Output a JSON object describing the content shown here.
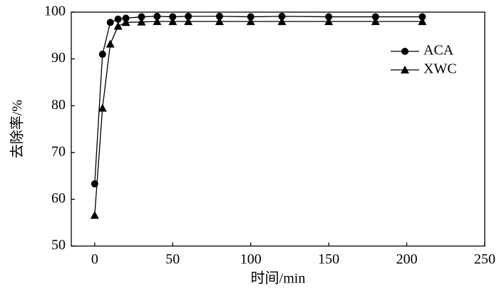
{
  "chart_data": {
    "type": "line",
    "x_label": "时间/min",
    "y_label": "去除率/%",
    "x": [
      0,
      5,
      10,
      15,
      20,
      30,
      40,
      50,
      60,
      80,
      100,
      120,
      150,
      180,
      210
    ],
    "series": [
      {
        "name": "ACA",
        "color": "#000000",
        "marker": "circle",
        "values": [
          63.3,
          91,
          97.8,
          98.5,
          98.7,
          99,
          99.1,
          99,
          99.1,
          99.1,
          99,
          99.1,
          99,
          99,
          99
        ]
      },
      {
        "name": "XWC",
        "color": "#000000",
        "marker": "triangle",
        "values": [
          56.6,
          79.5,
          93.2,
          97,
          97.8,
          97.9,
          98,
          98,
          98,
          98,
          98,
          98,
          98,
          98,
          98
        ]
      }
    ],
    "xlim": [
      -15,
      250
    ],
    "ylim": [
      50,
      100
    ],
    "xticks": [
      0,
      50,
      100,
      150,
      200,
      250
    ],
    "yticks": [
      50,
      60,
      70,
      80,
      90,
      100
    ],
    "legend": "upper right"
  }
}
